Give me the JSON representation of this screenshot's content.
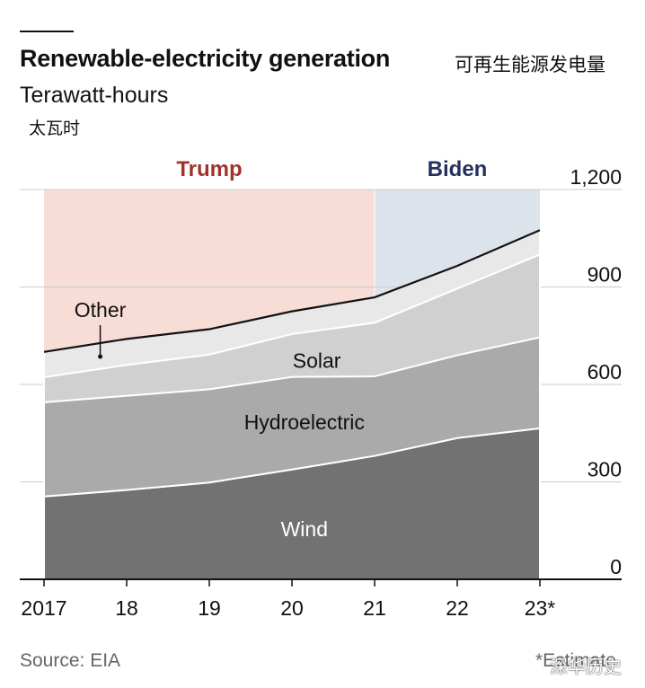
{
  "title": "Renewable-electricity generation",
  "title_cn": "可再生能源发电量",
  "subtitle": "Terawatt-hours",
  "subtitle_cn": "太瓦时",
  "source": "Source: EIA",
  "footnote": "*Estimate",
  "watermark": "深华历史",
  "colors": {
    "trump_bg": "#f7ddd6",
    "biden_bg": "#dde3ea",
    "trump_text": "#a0332b",
    "biden_text": "#25305e",
    "wind": "#727272",
    "hydro": "#aaaaaa",
    "solar": "#d0d0d0",
    "other": "#e8e8e8",
    "total_line": "#111111",
    "gridline": "#cccccc"
  },
  "chart_data": {
    "type": "area",
    "stacked": true,
    "title": "Renewable-electricity generation",
    "ylabel": "Terawatt-hours",
    "x": [
      2017,
      2018,
      2019,
      2020,
      2021,
      2022,
      2023
    ],
    "x_tick_labels": [
      "2017",
      "18",
      "19",
      "20",
      "21",
      "22",
      "23*"
    ],
    "ylim": [
      0,
      1200
    ],
    "y_ticks": [
      0,
      300,
      600,
      900,
      1200
    ],
    "y_tick_labels": [
      "0",
      "300",
      "600",
      "900",
      "1,200"
    ],
    "y_axis_position": "right",
    "grid": true,
    "series": [
      {
        "name": "Wind",
        "values": [
          255,
          275,
          298,
          338,
          380,
          435,
          465
        ]
      },
      {
        "name": "Hydroelectric",
        "values": [
          290,
          290,
          287,
          285,
          245,
          255,
          280
        ]
      },
      {
        "name": "Solar",
        "values": [
          77,
          95,
          107,
          132,
          165,
          205,
          255
        ]
      },
      {
        "name": "Other",
        "values": [
          78,
          80,
          78,
          70,
          78,
          70,
          75
        ]
      }
    ],
    "periods": [
      {
        "label": "Trump",
        "start": 2017,
        "end": 2021
      },
      {
        "label": "Biden",
        "start": 2021,
        "end": 2023
      }
    ],
    "annotations": [
      "Other",
      "Solar",
      "Hydroelectric",
      "Wind"
    ]
  }
}
